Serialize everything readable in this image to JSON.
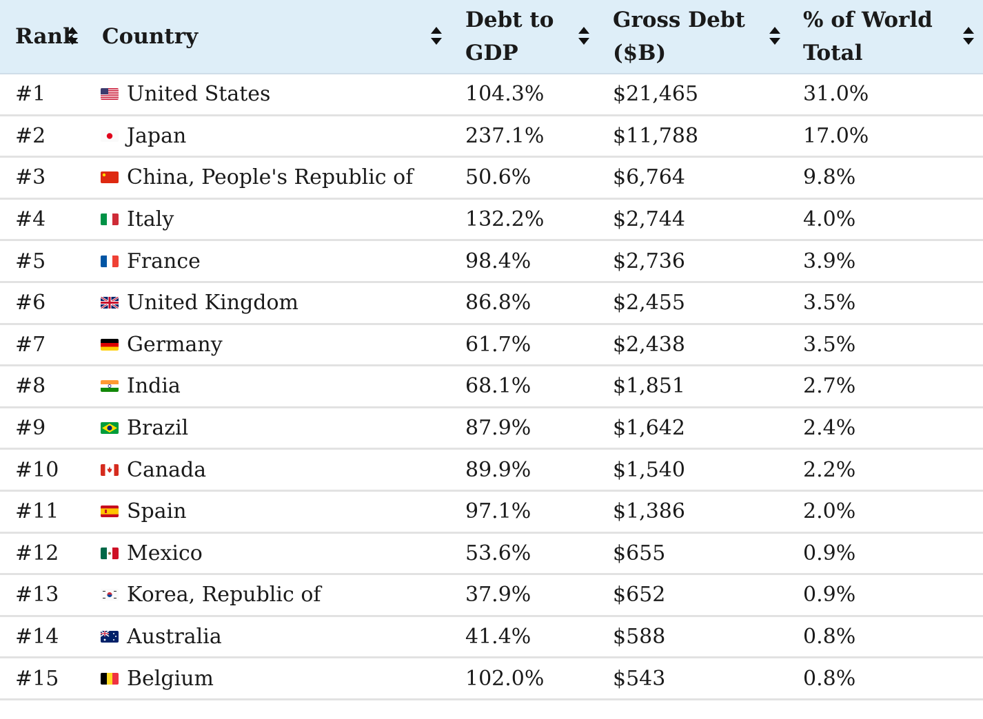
{
  "table": {
    "headers": {
      "rank": "Rank",
      "country": "Country",
      "debt_to_gdp_line1": "Debt to",
      "debt_to_gdp_line2": "GDP",
      "gross_debt_line1": "Gross Debt",
      "gross_debt_line2": "($B)",
      "world_total_line1": "% of World",
      "world_total_line2": "Total"
    },
    "rows": [
      {
        "rank": "#1",
        "country": "United States",
        "flag": "us-flag-icon",
        "debt_to_gdp": "104.3%",
        "gross_debt": "$21,465",
        "world_total": "31.0%"
      },
      {
        "rank": "#2",
        "country": "Japan",
        "flag": "jp-flag-icon",
        "debt_to_gdp": "237.1%",
        "gross_debt": "$11,788",
        "world_total": "17.0%"
      },
      {
        "rank": "#3",
        "country": "China, People's Republic of",
        "flag": "cn-flag-icon",
        "debt_to_gdp": "50.6%",
        "gross_debt": "$6,764",
        "world_total": "9.8%"
      },
      {
        "rank": "#4",
        "country": "Italy",
        "flag": "it-flag-icon",
        "debt_to_gdp": "132.2%",
        "gross_debt": "$2,744",
        "world_total": "4.0%"
      },
      {
        "rank": "#5",
        "country": "France",
        "flag": "fr-flag-icon",
        "debt_to_gdp": "98.4%",
        "gross_debt": "$2,736",
        "world_total": "3.9%"
      },
      {
        "rank": "#6",
        "country": "United Kingdom",
        "flag": "gb-flag-icon",
        "debt_to_gdp": "86.8%",
        "gross_debt": "$2,455",
        "world_total": "3.5%"
      },
      {
        "rank": "#7",
        "country": "Germany",
        "flag": "de-flag-icon",
        "debt_to_gdp": "61.7%",
        "gross_debt": "$2,438",
        "world_total": "3.5%"
      },
      {
        "rank": "#8",
        "country": "India",
        "flag": "in-flag-icon",
        "debt_to_gdp": "68.1%",
        "gross_debt": "$1,851",
        "world_total": "2.7%"
      },
      {
        "rank": "#9",
        "country": "Brazil",
        "flag": "br-flag-icon",
        "debt_to_gdp": "87.9%",
        "gross_debt": "$1,642",
        "world_total": "2.4%"
      },
      {
        "rank": "#10",
        "country": "Canada",
        "flag": "ca-flag-icon",
        "debt_to_gdp": "89.9%",
        "gross_debt": "$1,540",
        "world_total": "2.2%"
      },
      {
        "rank": "#11",
        "country": "Spain",
        "flag": "es-flag-icon",
        "debt_to_gdp": "97.1%",
        "gross_debt": "$1,386",
        "world_total": "2.0%"
      },
      {
        "rank": "#12",
        "country": "Mexico",
        "flag": "mx-flag-icon",
        "debt_to_gdp": "53.6%",
        "gross_debt": "$655",
        "world_total": "0.9%"
      },
      {
        "rank": "#13",
        "country": "Korea, Republic of",
        "flag": "kr-flag-icon",
        "debt_to_gdp": "37.9%",
        "gross_debt": "$652",
        "world_total": "0.9%"
      },
      {
        "rank": "#14",
        "country": "Australia",
        "flag": "au-flag-icon",
        "debt_to_gdp": "41.4%",
        "gross_debt": "$588",
        "world_total": "0.8%"
      },
      {
        "rank": "#15",
        "country": "Belgium",
        "flag": "be-flag-icon",
        "debt_to_gdp": "102.0%",
        "gross_debt": "$543",
        "world_total": "0.8%"
      }
    ]
  },
  "colors": {
    "header_bg": "#deeef8",
    "row_divider": "#e2e2e2",
    "text": "#1a1a1a"
  }
}
